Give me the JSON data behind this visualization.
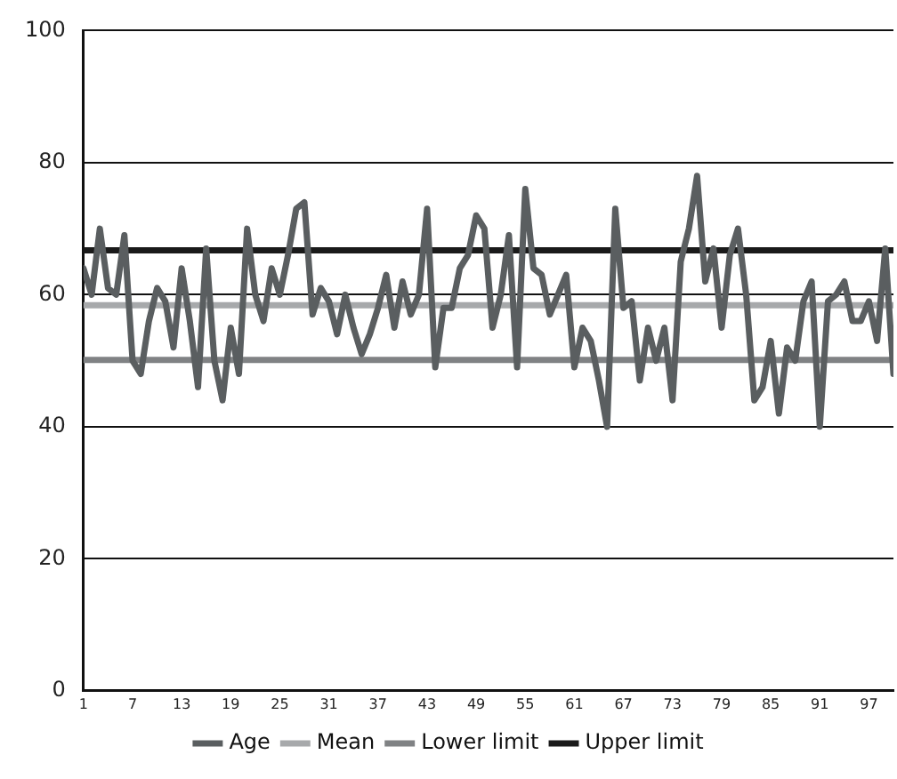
{
  "chart_data": {
    "type": "line",
    "x": [
      1,
      2,
      3,
      4,
      5,
      6,
      7,
      8,
      9,
      10,
      11,
      12,
      13,
      14,
      15,
      16,
      17,
      18,
      19,
      20,
      21,
      22,
      23,
      24,
      25,
      26,
      27,
      28,
      29,
      30,
      31,
      32,
      33,
      34,
      35,
      36,
      37,
      38,
      39,
      40,
      41,
      42,
      43,
      44,
      45,
      46,
      47,
      48,
      49,
      50,
      51,
      52,
      53,
      54,
      55,
      56,
      57,
      58,
      59,
      60,
      61,
      62,
      63,
      64,
      65,
      66,
      67,
      68,
      69,
      70,
      71,
      72,
      73,
      74,
      75,
      76,
      77,
      78,
      79,
      80,
      81,
      82,
      83,
      84,
      85,
      86,
      87,
      88,
      89,
      90,
      91,
      92,
      93,
      94,
      95,
      96,
      97,
      98,
      99,
      100
    ],
    "series": [
      {
        "name": "Age",
        "color": "#5a5e60",
        "values": [
          64,
          60,
          70,
          61,
          60,
          69,
          50,
          48,
          56,
          61,
          59,
          52,
          64,
          56,
          46,
          67,
          50,
          44,
          55,
          48,
          70,
          60,
          56,
          64,
          60,
          66,
          73,
          74,
          57,
          61,
          59,
          54,
          60,
          55,
          51,
          54,
          58,
          63,
          55,
          62,
          57,
          60,
          73,
          49,
          58,
          58,
          64,
          66,
          72,
          70,
          55,
          60,
          69,
          49,
          76,
          64,
          63,
          57,
          60,
          63,
          49,
          55,
          53,
          47,
          40,
          73,
          58,
          59,
          47,
          55,
          50,
          55,
          44,
          65,
          70,
          78,
          62,
          67,
          55,
          66,
          70,
          60,
          44,
          46,
          53,
          42,
          52,
          50,
          59,
          62,
          40,
          59,
          60,
          62,
          56,
          56,
          59,
          53,
          67,
          48
        ]
      },
      {
        "name": "Mean",
        "color": "#a7a9ab",
        "values": [
          58.4,
          58.4,
          58.4,
          58.4,
          58.4,
          58.4,
          58.4,
          58.4,
          58.4,
          58.4,
          58.4,
          58.4,
          58.4,
          58.4,
          58.4,
          58.4,
          58.4,
          58.4,
          58.4,
          58.4,
          58.4,
          58.4,
          58.4,
          58.4,
          58.4,
          58.4,
          58.4,
          58.4,
          58.4,
          58.4,
          58.4,
          58.4,
          58.4,
          58.4,
          58.4,
          58.4,
          58.4,
          58.4,
          58.4,
          58.4,
          58.4,
          58.4,
          58.4,
          58.4,
          58.4,
          58.4,
          58.4,
          58.4,
          58.4,
          58.4,
          58.4,
          58.4,
          58.4,
          58.4,
          58.4,
          58.4,
          58.4,
          58.4,
          58.4,
          58.4,
          58.4,
          58.4,
          58.4,
          58.4,
          58.4,
          58.4,
          58.4,
          58.4,
          58.4,
          58.4,
          58.4,
          58.4,
          58.4,
          58.4,
          58.4,
          58.4,
          58.4,
          58.4,
          58.4,
          58.4,
          58.4,
          58.4,
          58.4,
          58.4,
          58.4,
          58.4,
          58.4,
          58.4,
          58.4,
          58.4,
          58.4,
          58.4,
          58.4,
          58.4,
          58.4,
          58.4,
          58.4,
          58.4,
          58.4,
          58.4
        ]
      },
      {
        "name": "Lower limit",
        "color": "#808284",
        "values": [
          50.1,
          50.1,
          50.1,
          50.1,
          50.1,
          50.1,
          50.1,
          50.1,
          50.1,
          50.1,
          50.1,
          50.1,
          50.1,
          50.1,
          50.1,
          50.1,
          50.1,
          50.1,
          50.1,
          50.1,
          50.1,
          50.1,
          50.1,
          50.1,
          50.1,
          50.1,
          50.1,
          50.1,
          50.1,
          50.1,
          50.1,
          50.1,
          50.1,
          50.1,
          50.1,
          50.1,
          50.1,
          50.1,
          50.1,
          50.1,
          50.1,
          50.1,
          50.1,
          50.1,
          50.1,
          50.1,
          50.1,
          50.1,
          50.1,
          50.1,
          50.1,
          50.1,
          50.1,
          50.1,
          50.1,
          50.1,
          50.1,
          50.1,
          50.1,
          50.1,
          50.1,
          50.1,
          50.1,
          50.1,
          50.1,
          50.1,
          50.1,
          50.1,
          50.1,
          50.1,
          50.1,
          50.1,
          50.1,
          50.1,
          50.1,
          50.1,
          50.1,
          50.1,
          50.1,
          50.1,
          50.1,
          50.1,
          50.1,
          50.1,
          50.1,
          50.1,
          50.1,
          50.1,
          50.1,
          50.1,
          50.1,
          50.1,
          50.1,
          50.1,
          50.1,
          50.1,
          50.1,
          50.1,
          50.1,
          50.1
        ]
      },
      {
        "name": "Upper limit",
        "color": "#1a1a1a",
        "values": [
          66.7,
          66.7,
          66.7,
          66.7,
          66.7,
          66.7,
          66.7,
          66.7,
          66.7,
          66.7,
          66.7,
          66.7,
          66.7,
          66.7,
          66.7,
          66.7,
          66.7,
          66.7,
          66.7,
          66.7,
          66.7,
          66.7,
          66.7,
          66.7,
          66.7,
          66.7,
          66.7,
          66.7,
          66.7,
          66.7,
          66.7,
          66.7,
          66.7,
          66.7,
          66.7,
          66.7,
          66.7,
          66.7,
          66.7,
          66.7,
          66.7,
          66.7,
          66.7,
          66.7,
          66.7,
          66.7,
          66.7,
          66.7,
          66.7,
          66.7,
          66.7,
          66.7,
          66.7,
          66.7,
          66.7,
          66.7,
          66.7,
          66.7,
          66.7,
          66.7,
          66.7,
          66.7,
          66.7,
          66.7,
          66.7,
          66.7,
          66.7,
          66.7,
          66.7,
          66.7,
          66.7,
          66.7,
          66.7,
          66.7,
          66.7,
          66.7,
          66.7,
          66.7,
          66.7,
          66.7,
          66.7,
          66.7,
          66.7,
          66.7,
          66.7,
          66.7,
          66.7,
          66.7,
          66.7,
          66.7,
          66.7,
          66.7,
          66.7,
          66.7,
          66.7,
          66.7,
          66.7,
          66.7,
          66.7,
          66.7
        ]
      }
    ],
    "xlim": [
      1,
      100
    ],
    "xticks": [
      1,
      7,
      13,
      19,
      25,
      31,
      37,
      43,
      49,
      55,
      61,
      67,
      73,
      79,
      85,
      91,
      97
    ],
    "ylim": [
      0,
      100
    ],
    "yticks": [
      0,
      20,
      40,
      60,
      80,
      100
    ],
    "grid": "y",
    "legend": "bottom",
    "marker": "none",
    "line_style": "solid"
  }
}
